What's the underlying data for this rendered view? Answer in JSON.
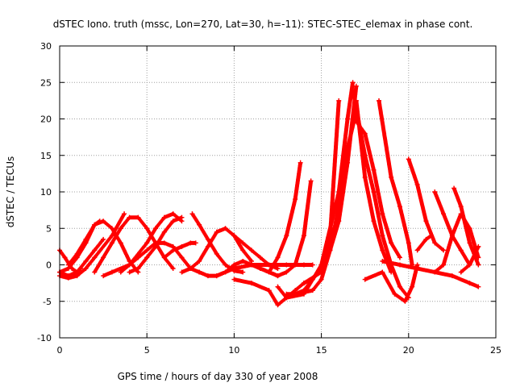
{
  "chart_data": {
    "type": "scatter",
    "marker": "plus",
    "title": "dSTEC Iono. truth (mssc, Lon=270, Lat=30, h=-11): STEC-STEC_elemax in phase cont.",
    "xlabel": "GPS time / hours of day 330 of year 2008",
    "ylabel": "dSTEC  / TECUs",
    "xlim": [
      0,
      25
    ],
    "ylim": [
      -10,
      30
    ],
    "xticks": [
      0,
      5,
      10,
      15,
      20,
      25
    ],
    "yticks": [
      -10,
      -5,
      0,
      5,
      10,
      15,
      20,
      25,
      30
    ],
    "xtick_labels": [
      "0",
      "5",
      "10",
      "15",
      "20",
      "25"
    ],
    "ytick_labels": [
      "-10",
      "-5",
      "0",
      "5",
      "10",
      "15",
      "20",
      "25",
      "30"
    ],
    "grid": true,
    "legend": "none",
    "series_color": "#ff0000",
    "series": [
      {
        "name": "arc-1",
        "x": [
          0.0,
          0.5,
          1.0,
          1.5,
          2.0,
          2.3
        ],
        "y": [
          -1.0,
          -0.5,
          1.0,
          3.0,
          5.5,
          6.0
        ]
      },
      {
        "name": "arc-2",
        "x": [
          0.0,
          0.3,
          0.7,
          1.0,
          1.2
        ],
        "y": [
          2.0,
          1.0,
          -0.5,
          -1.0,
          -0.5
        ]
      },
      {
        "name": "arc-3",
        "x": [
          0.0,
          0.5,
          1.0,
          1.5,
          2.0,
          3.0,
          3.7
        ],
        "y": [
          -1.5,
          -1.8,
          -1.5,
          -0.5,
          1.0,
          4.0,
          7.0
        ]
      },
      {
        "name": "arc-4",
        "x": [
          0.0,
          0.5,
          1.0,
          1.5,
          2.0,
          2.5
        ],
        "y": [
          -1.0,
          -1.5,
          -1.0,
          0.5,
          2.0,
          3.5
        ]
      },
      {
        "name": "arc-5",
        "x": [
          0.5,
          1.0,
          1.5,
          2.0,
          2.5,
          3.0,
          3.5,
          4.0,
          4.5
        ],
        "y": [
          0.0,
          1.5,
          3.5,
          5.5,
          6.0,
          5.0,
          3.0,
          0.5,
          -1.0
        ]
      },
      {
        "name": "arc-6",
        "x": [
          2.0,
          2.5,
          3.0,
          3.5,
          4.0,
          4.5,
          5.0,
          5.5,
          6.0,
          6.5
        ],
        "y": [
          -1.0,
          1.0,
          3.0,
          5.0,
          6.5,
          6.5,
          5.0,
          3.0,
          1.0,
          -0.5
        ]
      },
      {
        "name": "arc-7",
        "x": [
          2.5,
          3.0,
          4.0,
          5.0,
          5.5,
          6.0,
          6.5,
          7.0
        ],
        "y": [
          -1.5,
          -1.0,
          0.0,
          3.0,
          5.0,
          6.5,
          7.0,
          6.0
        ]
      },
      {
        "name": "arc-8",
        "x": [
          3.5,
          4.0,
          4.5,
          5.0,
          5.5,
          6.0,
          6.5,
          7.0,
          7.5,
          8.0
        ],
        "y": [
          -1.0,
          0.0,
          1.0,
          2.0,
          3.0,
          3.0,
          2.5,
          1.0,
          -0.5,
          -1.0
        ]
      },
      {
        "name": "arc-9",
        "x": [
          4.0,
          4.5,
          5.0,
          5.5,
          6.0,
          6.5,
          7.0
        ],
        "y": [
          -1.0,
          -0.5,
          1.0,
          2.5,
          4.5,
          6.0,
          6.5
        ]
      },
      {
        "name": "arc-10",
        "x": [
          6.0,
          6.5,
          7.0,
          7.5,
          7.8
        ],
        "y": [
          1.0,
          2.0,
          2.5,
          3.0,
          3.0
        ]
      },
      {
        "name": "arc-11",
        "x": [
          7.6,
          8.0,
          8.5,
          9.0,
          9.5,
          10.0,
          10.5
        ],
        "y": [
          7.0,
          5.5,
          3.5,
          1.5,
          0.0,
          -0.8,
          -1.0
        ]
      },
      {
        "name": "arc-12",
        "x": [
          7.0,
          7.5,
          8.0,
          8.5,
          9.0,
          9.5,
          10.0,
          10.5,
          11.0
        ],
        "y": [
          -1.0,
          -0.5,
          0.5,
          2.5,
          4.5,
          5.0,
          4.0,
          2.0,
          0.5
        ]
      },
      {
        "name": "arc-13",
        "x": [
          8.0,
          8.5,
          9.0,
          9.5,
          10.0,
          10.5,
          11.0,
          11.5,
          12.0,
          12.5
        ],
        "y": [
          -1.0,
          -1.5,
          -1.5,
          -1.0,
          0.0,
          0.5,
          0.0,
          -0.5,
          -1.0,
          -1.5
        ]
      },
      {
        "name": "arc-14",
        "x": [
          9.0,
          10.0,
          11.0,
          12.0,
          13.0,
          14.0,
          14.5
        ],
        "y": [
          -1.5,
          -0.5,
          0.0,
          0.0,
          0.0,
          0.0,
          0.0
        ]
      },
      {
        "name": "arc-15",
        "x": [
          10.0,
          10.5,
          11.0,
          11.5,
          12.0,
          12.5
        ],
        "y": [
          4.0,
          3.0,
          2.0,
          1.0,
          0.0,
          -0.5
        ]
      },
      {
        "name": "arc-16",
        "x": [
          10.0,
          11.0,
          12.0,
          12.5,
          13.0,
          13.5,
          14.0,
          14.5
        ],
        "y": [
          -2.0,
          -2.5,
          -3.5,
          -5.5,
          -4.5,
          -3.5,
          -2.5,
          -2.0
        ]
      },
      {
        "name": "arc-17",
        "x": [
          11.5,
          12.0,
          12.5,
          13.0,
          13.5,
          13.8
        ],
        "y": [
          -0.5,
          -1.0,
          1.0,
          4.0,
          9.0,
          14.0
        ]
      },
      {
        "name": "arc-18",
        "x": [
          12.0,
          12.5,
          13.0,
          13.5,
          14.0,
          14.4
        ],
        "y": [
          -1.0,
          -1.5,
          -1.0,
          0.0,
          4.0,
          11.5
        ]
      },
      {
        "name": "arc-19",
        "x": [
          12.5,
          13.0,
          14.0,
          15.0,
          16.0,
          16.5,
          16.8
        ],
        "y": [
          -3.0,
          -4.5,
          -4.0,
          0.0,
          10.0,
          20.0,
          25.0
        ]
      },
      {
        "name": "arc-20",
        "x": [
          13.0,
          13.5,
          14.0,
          15.0,
          15.5,
          16.0
        ],
        "y": [
          -4.0,
          -4.0,
          -3.5,
          -0.5,
          4.0,
          22.5
        ]
      },
      {
        "name": "arc-21",
        "x": [
          13.5,
          14.5,
          15.0,
          15.5,
          16.0,
          16.5,
          17.0
        ],
        "y": [
          -4.0,
          -3.5,
          -2.0,
          2.0,
          8.0,
          16.0,
          21.0
        ]
      },
      {
        "name": "arc-22",
        "x": [
          14.0,
          15.0,
          15.5,
          16.0,
          16.5,
          17.0
        ],
        "y": [
          -2.5,
          -1.0,
          2.0,
          6.0,
          14.0,
          24.5
        ]
      },
      {
        "name": "arc-23",
        "x": [
          16.8,
          17.5,
          18.0,
          18.5,
          19.0,
          19.5,
          20.0
        ],
        "y": [
          24.0,
          15.0,
          10.0,
          4.0,
          0.0,
          -3.0,
          -4.5
        ]
      },
      {
        "name": "arc-24",
        "x": [
          16.9,
          17.5,
          18.0,
          18.5,
          19.0,
          19.5
        ],
        "y": [
          20.0,
          18.0,
          13.0,
          7.0,
          3.0,
          1.0
        ]
      },
      {
        "name": "arc-25",
        "x": [
          17.0,
          17.5,
          18.0,
          18.5,
          19.0
        ],
        "y": [
          22.5,
          12.0,
          6.0,
          2.0,
          -1.0
        ]
      },
      {
        "name": "arc-26",
        "x": [
          17.5,
          18.5,
          19.2,
          19.8,
          20.2,
          20.5
        ],
        "y": [
          -2.0,
          -1.0,
          -4.0,
          -5.0,
          -3.0,
          0.0
        ]
      },
      {
        "name": "arc-27",
        "x": [
          18.3,
          19.0,
          19.5,
          20.0,
          20.2
        ],
        "y": [
          22.5,
          12.0,
          8.0,
          3.0,
          0.0
        ]
      },
      {
        "name": "arc-28",
        "x": [
          18.5,
          19.5,
          20.5,
          21.5,
          22.5,
          23.5,
          24.0
        ],
        "y": [
          0.5,
          0.0,
          -0.5,
          -1.0,
          -1.5,
          -2.5,
          -3.0
        ]
      },
      {
        "name": "arc-29",
        "x": [
          20.0,
          20.5,
          21.0,
          21.5,
          22.0
        ],
        "y": [
          14.5,
          11.0,
          6.0,
          3.0,
          2.0
        ]
      },
      {
        "name": "arc-30",
        "x": [
          20.5,
          21.0,
          21.3
        ],
        "y": [
          2.0,
          3.5,
          4.0
        ]
      },
      {
        "name": "arc-31",
        "x": [
          21.5,
          22.0,
          22.5,
          23.0,
          23.5
        ],
        "y": [
          10.0,
          7.0,
          4.0,
          2.0,
          0.0
        ]
      },
      {
        "name": "arc-32",
        "x": [
          21.5,
          22.0,
          22.5,
          23.0,
          23.5,
          24.0
        ],
        "y": [
          -1.0,
          0.0,
          4.0,
          7.0,
          5.0,
          1.0
        ]
      },
      {
        "name": "arc-33",
        "x": [
          22.6,
          23.0,
          23.5,
          24.0
        ],
        "y": [
          10.5,
          8.0,
          3.0,
          0.0
        ]
      },
      {
        "name": "arc-34",
        "x": [
          23.0,
          23.5,
          24.0
        ],
        "y": [
          -1.0,
          0.0,
          2.5
        ]
      }
    ]
  }
}
